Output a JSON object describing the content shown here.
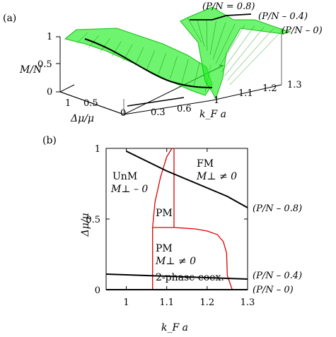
{
  "chart_data": [
    {
      "panel": "(a)",
      "type": "surface",
      "zlabel": "M/N",
      "xlabel": "Δμ/μ",
      "ylabel": "k_F a",
      "z_ticks": [
        "0",
        "0.5",
        "1"
      ],
      "x_ticks": [
        "1",
        "0.5",
        "0"
      ],
      "y_ticks": [
        "0.3",
        "0.6",
        "1",
        "1.1",
        "1.2",
        "1.3"
      ],
      "surface_color": "#22ee22",
      "line_color": "#000000",
      "curve_labels": [
        "(P/N = 0.8)",
        "(P/N – 0.4)",
        "(P/N – 0)"
      ]
    },
    {
      "panel": "(b)",
      "type": "line",
      "xlabel": "k_F a",
      "ylabel": "Δμ/μ",
      "xlim": [
        0.95,
        1.3
      ],
      "ylim": [
        0,
        1
      ],
      "x_ticks": [
        1,
        1.1,
        1.2,
        1.3
      ],
      "y_ticks": [
        0,
        0.5,
        1
      ],
      "x_tick_labels": [
        "1",
        "1.1",
        "1.2",
        "1.3"
      ],
      "y_tick_labels": [
        "0",
        "0.5",
        "1"
      ],
      "series": [
        {
          "name": "(P/N – 0.8)",
          "color": "#000000",
          "x": [
            1.0,
            1.05,
            1.1,
            1.15,
            1.2,
            1.25,
            1.3
          ],
          "y": [
            0.98,
            0.91,
            0.84,
            0.78,
            0.72,
            0.66,
            0.58
          ]
        },
        {
          "name": "(P/N – 0.4)",
          "color": "#000000",
          "x": [
            0.95,
            1.0,
            1.05,
            1.1,
            1.15,
            1.2,
            1.25,
            1.3
          ],
          "y": [
            0.11,
            0.105,
            0.1,
            0.095,
            0.09,
            0.085,
            0.08,
            0.075
          ]
        },
        {
          "name": "(P/N – 0)",
          "color": "#000000",
          "x": [
            0.95,
            1.3
          ],
          "y": [
            0.0,
            0.0
          ]
        }
      ],
      "boundaries": [
        {
          "color": "#dd0000",
          "x": [
            1.065,
            1.065
          ],
          "y": [
            0.0,
            0.44
          ]
        },
        {
          "color": "#dd0000",
          "x": [
            1.065,
            1.071,
            1.085,
            1.1,
            1.113
          ],
          "y": [
            0.44,
            0.62,
            0.8,
            0.94,
            1.0
          ]
        },
        {
          "color": "#dd0000",
          "x": [
            1.118,
            1.118
          ],
          "y": [
            0.44,
            1.0
          ]
        },
        {
          "color": "#dd0000",
          "x": [
            1.065,
            1.118
          ],
          "y": [
            0.44,
            0.44
          ]
        },
        {
          "color": "#dd0000",
          "x": [
            1.118,
            1.17,
            1.2,
            1.225,
            1.24,
            1.248,
            1.25,
            1.262
          ],
          "y": [
            0.44,
            0.43,
            0.415,
            0.39,
            0.34,
            0.26,
            0.1,
            0.0
          ]
        }
      ],
      "regions": [
        {
          "line1": "UnM",
          "line2": "M⊥ – 0"
        },
        {
          "line1": "FM",
          "line2": "M⊥ ≠ 0"
        },
        {
          "line1": "PM"
        },
        {
          "line1": "PM",
          "line2": "M⊥ ≠ 0",
          "line3": "2-phase coex."
        }
      ]
    }
  ]
}
